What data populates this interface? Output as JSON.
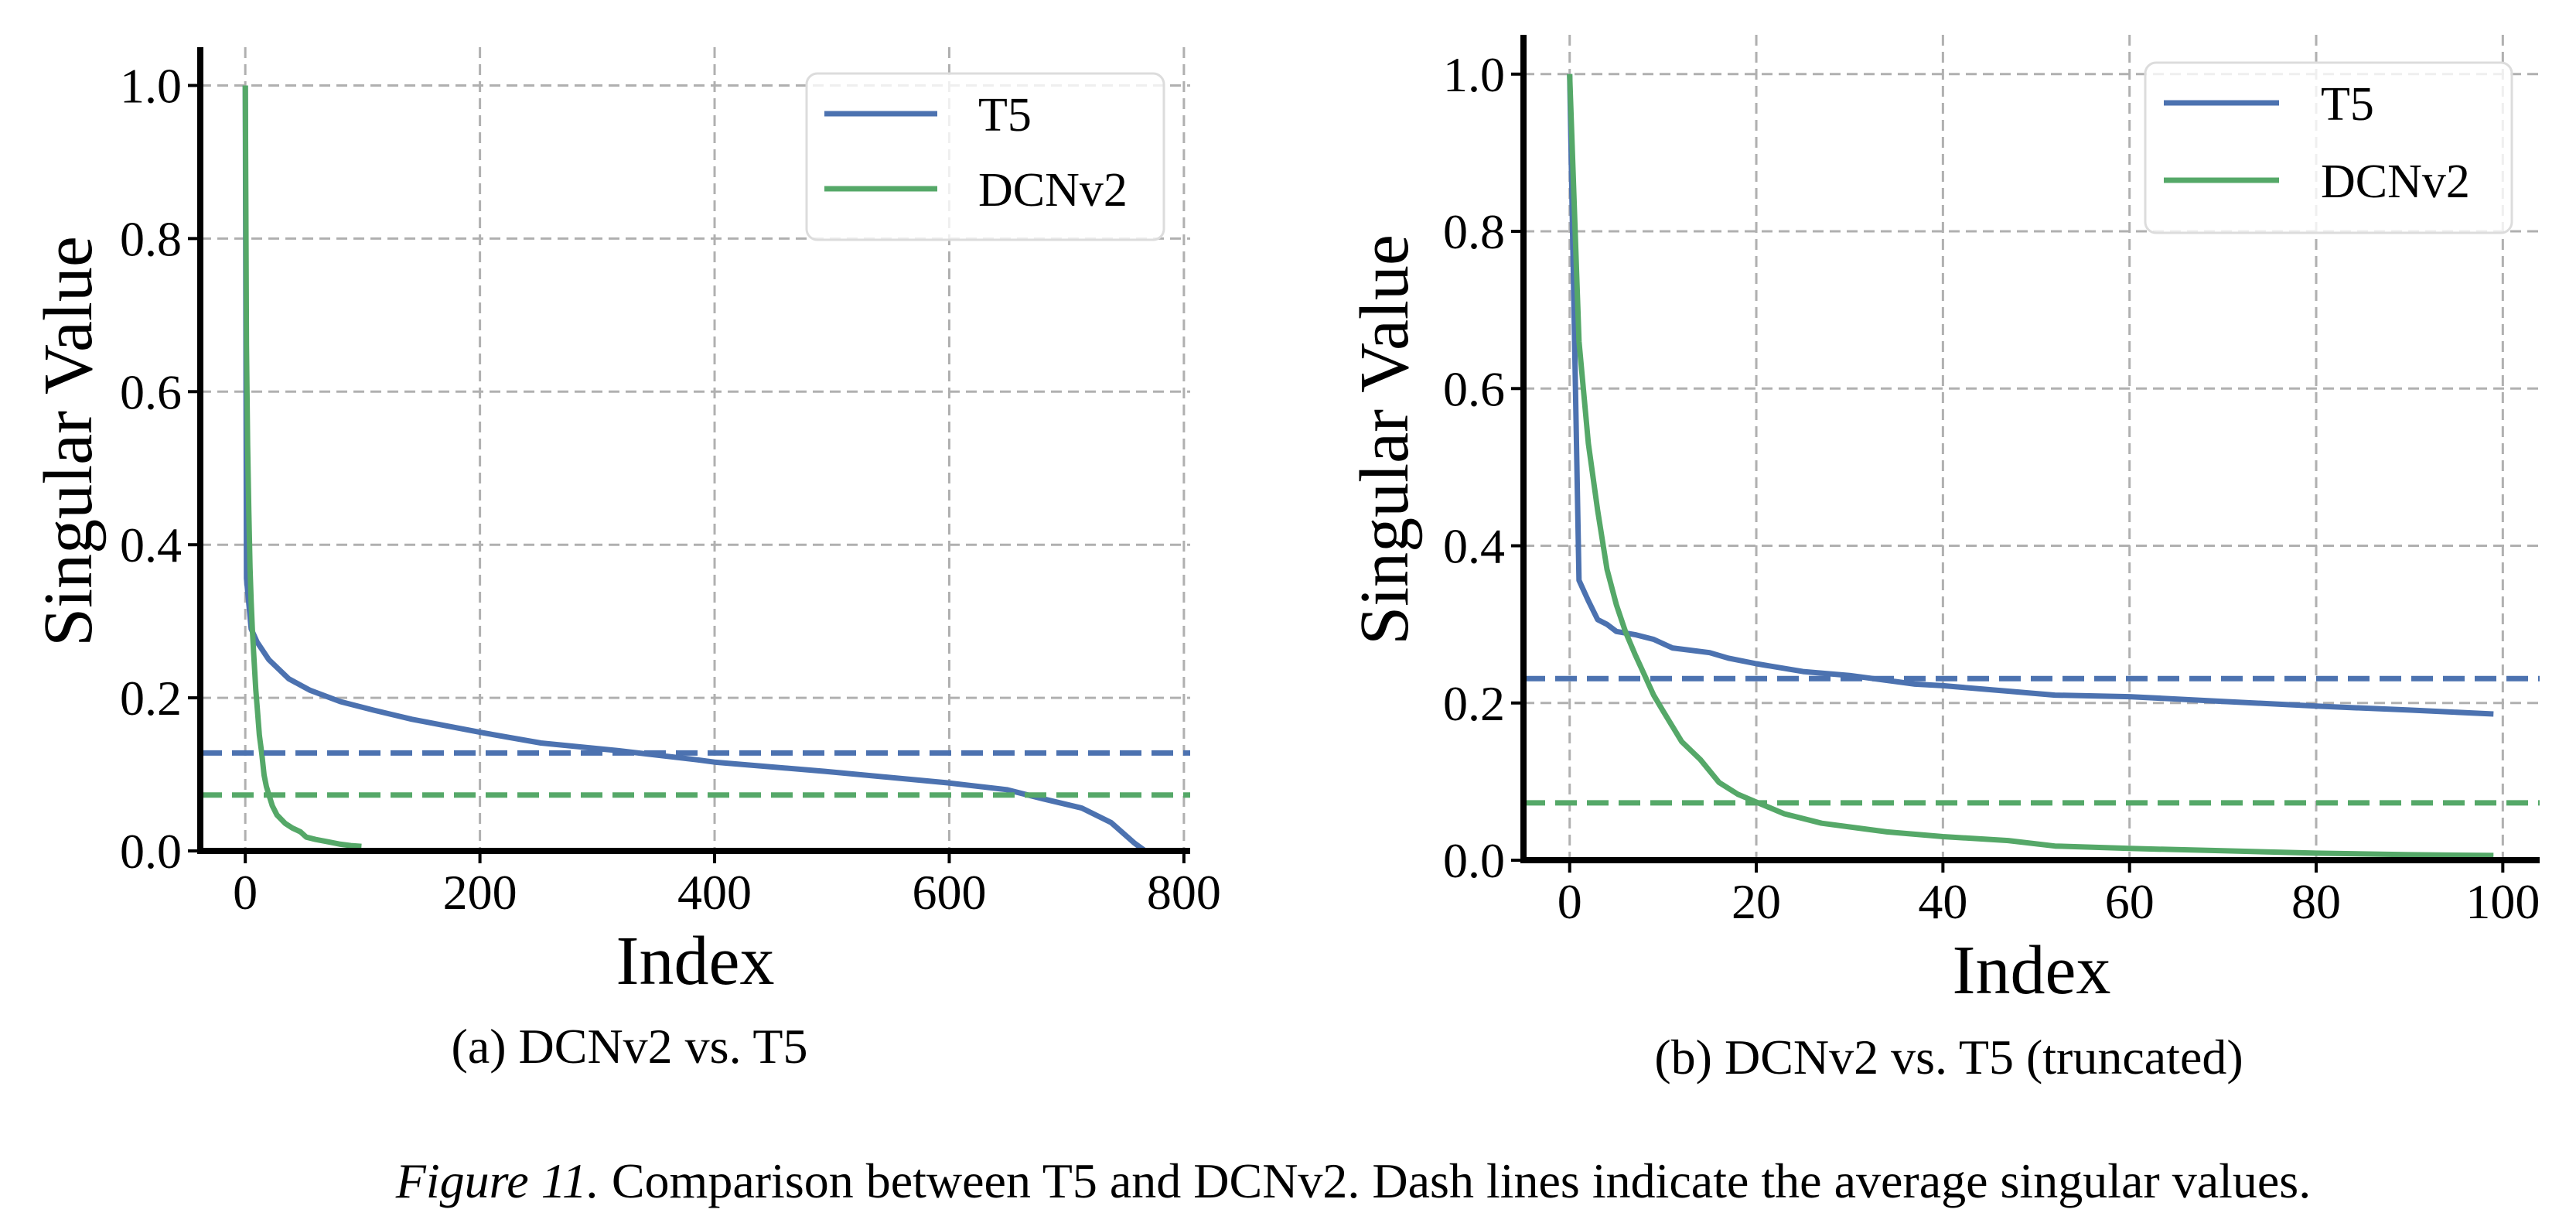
{
  "caption": {
    "label": "Figure 11.",
    "text": " Comparison between T5 and DCNv2. Dash lines indicate the average singular values."
  },
  "colors": {
    "T5": "#4C72B0",
    "DCNv2": "#55A868",
    "grid": "#b0b0b0"
  },
  "chart_data": [
    {
      "id": "a",
      "type": "line",
      "subcaption": "(a) DCNv2 vs. T5",
      "title": "",
      "xlabel": "Index",
      "ylabel": "Singular Value",
      "xlim": [
        -38.35,
        805.35
      ],
      "ylim": [
        0,
        1.05
      ],
      "xticks": [
        0,
        200,
        400,
        600,
        800
      ],
      "xtick_labels": [
        "0",
        "200",
        "400",
        "600",
        "800"
      ],
      "yticks": [
        0.0,
        0.2,
        0.4,
        0.6,
        0.8,
        1.0
      ],
      "ytick_labels": [
        "0.0",
        "0.2",
        "0.4",
        "0.6",
        "0.8",
        "1.0"
      ],
      "grid": true,
      "legend": {
        "placement": "top-right",
        "entries": [
          "T5",
          "DCNv2"
        ]
      },
      "series": [
        {
          "name": "T5",
          "color": "#4C72B0",
          "x": [
            0,
            1,
            5,
            10,
            20,
            37,
            55,
            81,
            109,
            142,
            200,
            252,
            318,
            385,
            400,
            494,
            598,
            649,
            680,
            713,
            738,
            758,
            767
          ],
          "y": [
            1.0,
            0.356,
            0.29,
            0.273,
            0.25,
            0.225,
            0.21,
            0.195,
            0.184,
            0.172,
            0.155,
            0.141,
            0.131,
            0.119,
            0.116,
            0.104,
            0.089,
            0.08,
            0.068,
            0.056,
            0.037,
            0.01,
            0.0
          ]
        },
        {
          "name": "DCNv2",
          "color": "#55A868",
          "x": [
            0,
            1,
            2,
            3,
            4,
            5,
            6,
            7,
            8,
            9,
            10,
            12,
            14,
            16,
            18,
            20,
            23,
            27,
            34,
            40,
            47,
            52,
            60,
            70,
            80,
            90,
            99
          ],
          "y": [
            1.0,
            0.66,
            0.53,
            0.445,
            0.37,
            0.325,
            0.29,
            0.262,
            0.236,
            0.21,
            0.19,
            0.151,
            0.128,
            0.099,
            0.084,
            0.074,
            0.059,
            0.047,
            0.036,
            0.03,
            0.025,
            0.018,
            0.015,
            0.012,
            0.009,
            0.007,
            0.006
          ]
        }
      ],
      "mean_lines": [
        {
          "name": "T5 average",
          "series": "T5",
          "value": 0.128,
          "style": "dashed"
        },
        {
          "name": "DCNv2 average",
          "series": "DCNv2",
          "value": 0.073,
          "style": "dashed"
        }
      ]
    },
    {
      "id": "b",
      "type": "line",
      "subcaption": "(b) DCNv2 vs. T5 (truncated)",
      "title": "",
      "xlabel": "Index",
      "ylabel": "Singular Value",
      "xlim": [
        -4.95,
        103.95
      ],
      "ylim": [
        0,
        1.05
      ],
      "xticks": [
        0,
        20,
        40,
        60,
        80,
        100
      ],
      "xtick_labels": [
        "0",
        "20",
        "40",
        "60",
        "80",
        "100"
      ],
      "yticks": [
        0.0,
        0.2,
        0.4,
        0.6,
        0.8,
        1.0
      ],
      "ytick_labels": [
        "0.0",
        "0.2",
        "0.4",
        "0.6",
        "0.8",
        "1.0"
      ],
      "grid": true,
      "legend": {
        "placement": "top-right",
        "entries": [
          "T5",
          "DCNv2"
        ]
      },
      "series": [
        {
          "name": "T5",
          "color": "#4C72B0",
          "x": [
            0,
            1,
            2,
            3,
            4,
            5,
            7,
            9,
            11,
            15,
            17,
            20,
            25,
            30,
            37,
            40,
            47,
            52,
            60,
            70,
            80,
            90,
            99
          ],
          "y": [
            1.0,
            0.356,
            0.33,
            0.306,
            0.3,
            0.291,
            0.287,
            0.281,
            0.27,
            0.264,
            0.257,
            0.25,
            0.24,
            0.235,
            0.224,
            0.222,
            0.215,
            0.21,
            0.208,
            0.202,
            0.196,
            0.191,
            0.186
          ]
        },
        {
          "name": "DCNv2",
          "color": "#55A868",
          "x": [
            0,
            1,
            2,
            3,
            4,
            5,
            6,
            7,
            8,
            9,
            10,
            12,
            14,
            16,
            18,
            20,
            23,
            27,
            34,
            40,
            47,
            52,
            60,
            70,
            80,
            90,
            99
          ],
          "y": [
            1.0,
            0.66,
            0.53,
            0.445,
            0.37,
            0.325,
            0.29,
            0.262,
            0.236,
            0.21,
            0.19,
            0.151,
            0.128,
            0.099,
            0.084,
            0.074,
            0.059,
            0.047,
            0.036,
            0.03,
            0.025,
            0.018,
            0.015,
            0.012,
            0.009,
            0.007,
            0.006
          ]
        }
      ],
      "mean_lines": [
        {
          "name": "T5 average",
          "series": "T5",
          "value": 0.231,
          "style": "dashed"
        },
        {
          "name": "DCNv2 average",
          "series": "DCNv2",
          "value": 0.073,
          "style": "dashed"
        }
      ]
    }
  ]
}
